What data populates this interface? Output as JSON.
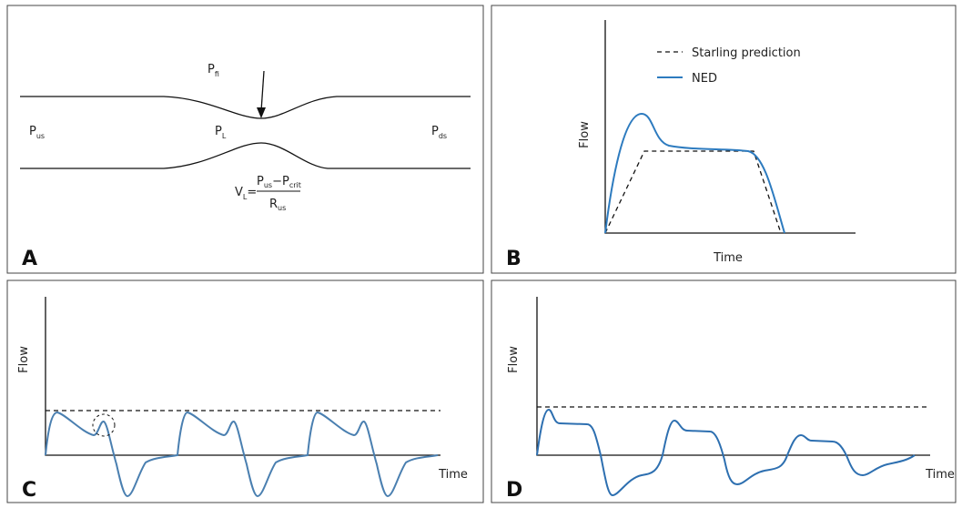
{
  "panel_a": {
    "letter": "A",
    "p_fi": {
      "main": "P",
      "sub": "fi"
    },
    "p_us": {
      "main": "P",
      "sub": "us"
    },
    "p_l": {
      "main": "P",
      "sub": "L"
    },
    "p_ds": {
      "main": "P",
      "sub": "ds"
    },
    "formula": {
      "lhs": {
        "main": "V",
        "sub": "L"
      },
      "equals": "=",
      "numerator": {
        "first": {
          "main": "P",
          "sub": "us"
        },
        "minus": "−",
        "second": {
          "main": "P",
          "sub": "crit"
        }
      },
      "denominator": {
        "main": "R",
        "sub": "us"
      }
    }
  },
  "panel_b": {
    "letter": "B",
    "y_label": "Flow",
    "x_label": "Time",
    "legend": [
      "Starling prediction",
      "NED"
    ]
  },
  "panel_c": {
    "letter": "C",
    "y_label": "Flow",
    "x_label": "Time"
  },
  "panel_d": {
    "letter": "D",
    "y_label": "Flow",
    "x_label": "Time"
  }
}
